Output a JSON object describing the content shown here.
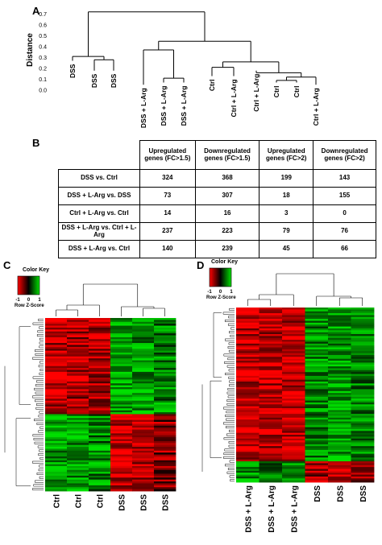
{
  "panels": {
    "a": "A",
    "b": "B",
    "c": "C",
    "d": "D"
  },
  "panel_a": {
    "ylabel": "Distance",
    "yticks": [
      "0.0",
      "0.1",
      "0.2",
      "0.3",
      "0.4",
      "0.5",
      "0.6",
      "0.7"
    ],
    "leaves": [
      "DSS",
      "DSS",
      "DSS",
      "DSS + L-Arg",
      "DSS + L-Arg",
      "DSS + L-Arg",
      "Ctrl",
      "Ctrl + L-Arg",
      "Ctrl + L-Arg",
      "Ctrl",
      "Ctrl",
      "Ctrl + L-Arg"
    ]
  },
  "panel_b": {
    "headers": [
      "Upregulated genes (FC>1.5)",
      "Downregulated genes (FC>1.5)",
      "Upregulated genes (FC>2)",
      "Downregulated genes (FC>2)"
    ],
    "rows": [
      {
        "label": "DSS vs. Ctrl",
        "values": [
          "324",
          "368",
          "199",
          "143"
        ]
      },
      {
        "label": "DSS + L-Arg vs. DSS",
        "values": [
          "73",
          "307",
          "18",
          "155"
        ]
      },
      {
        "label": "Ctrl + L-Arg vs. Ctrl",
        "values": [
          "14",
          "16",
          "3",
          "0"
        ]
      },
      {
        "label": "DSS + L-Arg vs. Ctrl + L-Arg",
        "values": [
          "237",
          "223",
          "79",
          "76"
        ]
      },
      {
        "label": "DSS + L-Arg vs. Ctrl",
        "values": [
          "140",
          "239",
          "45",
          "66"
        ]
      }
    ]
  },
  "panel_c": {
    "color_key_title": "Color Key",
    "color_key_ticks": [
      "-1",
      "0",
      "1"
    ],
    "color_key_label": "Row Z-Score",
    "columns": [
      "Ctrl",
      "Ctrl",
      "Ctrl",
      "DSS",
      "DSS",
      "DSS"
    ]
  },
  "panel_d": {
    "color_key_title": "Color Key",
    "color_key_ticks": [
      "-1",
      "0",
      "1"
    ],
    "color_key_label": "Row Z-Score",
    "columns": [
      "DSS + L-Arg",
      "DSS + L-Arg",
      "DSS + L-Arg",
      "DSS",
      "DSS",
      "DSS"
    ]
  },
  "colors": {
    "low": "#ff0000",
    "mid": "#000000",
    "high": "#00e000"
  }
}
